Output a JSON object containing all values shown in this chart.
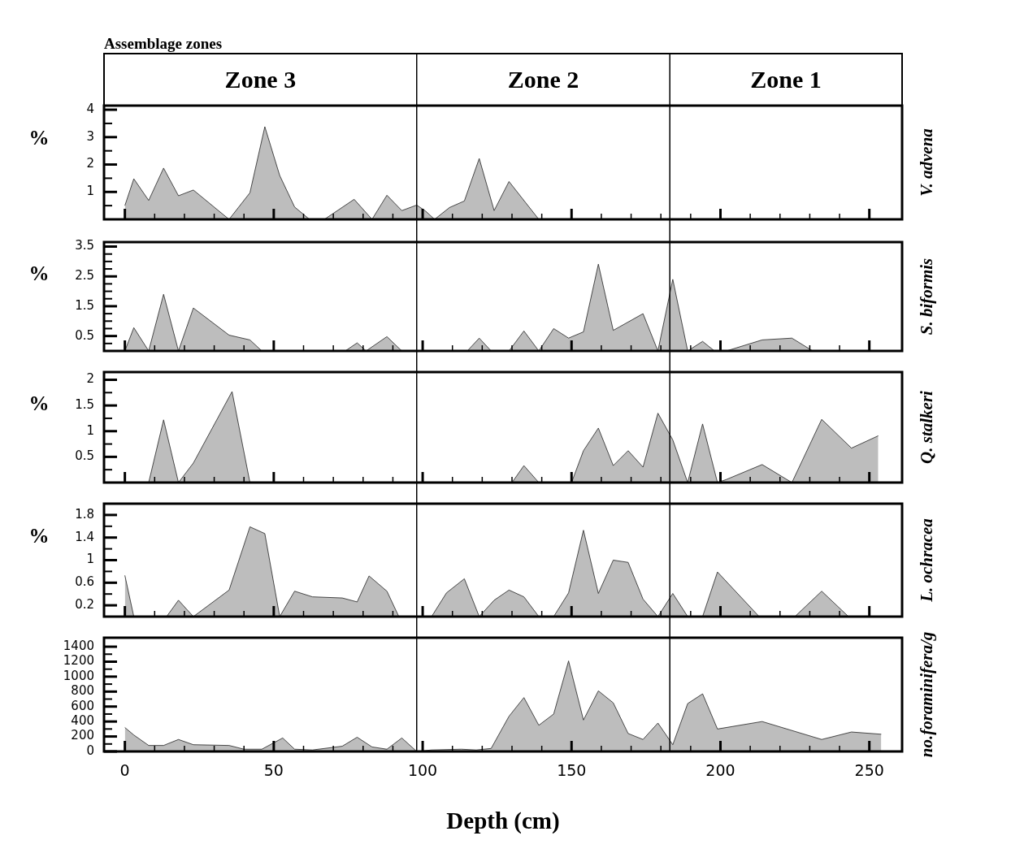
{
  "chart_data": [
    {
      "type": "area",
      "title": "Assemblage zones",
      "ylabel": "%",
      "y2label": "V. advena",
      "tick_labels": "y",
      "xlim": [
        -7,
        261
      ],
      "xticks": [
        0,
        {
          "value": 10,
          "label": null
        },
        {
          "value": 20,
          "label": null
        },
        {
          "value": 30,
          "label": null
        },
        {
          "value": 40,
          "label": null
        },
        50,
        {
          "value": 60,
          "label": null
        },
        {
          "value": 70,
          "label": null
        },
        {
          "value": 80,
          "label": null
        },
        {
          "value": 90,
          "label": null
        },
        100,
        {
          "value": 110,
          "label": null
        },
        {
          "value": 120,
          "label": null
        },
        {
          "value": 130,
          "label": null
        },
        {
          "value": 140,
          "label": null
        },
        150,
        {
          "value": 160,
          "label": null
        },
        {
          "value": 170,
          "label": null
        },
        {
          "value": 180,
          "label": null
        },
        {
          "value": 190,
          "label": null
        },
        200,
        {
          "value": 210,
          "label": null
        },
        {
          "value": 220,
          "label": null
        },
        {
          "value": 230,
          "label": null
        },
        {
          "value": 240,
          "label": null
        },
        250
      ],
      "ylim": [
        0,
        4.15
      ],
      "yticks": [
        {
          "value": 0.5,
          "label": null
        },
        1,
        {
          "value": 1.5,
          "label": null
        },
        2,
        {
          "value": 2.5,
          "label": null
        },
        3,
        {
          "value": 3.5,
          "label": null
        },
        4
      ],
      "annotations": [
        "Zone 3",
        "Zone 2",
        "Zone 1"
      ],
      "ref_lines": [
        {
          "axis": "x",
          "value": 98
        },
        {
          "axis": "x",
          "value": 183
        }
      ],
      "series": [
        {
          "color": "#bdbdbd",
          "x": [
            0,
            3,
            8,
            13,
            18,
            23,
            35,
            42,
            47,
            52,
            57,
            62,
            67,
            77,
            83,
            88,
            93,
            98,
            101,
            104,
            109,
            114,
            119,
            124,
            129,
            139
          ],
          "values": [
            0.5,
            1.48,
            0.69,
            1.87,
            0.86,
            1.07,
            0,
            0.97,
            3.38,
            1.6,
            0.45,
            0,
            0,
            0.73,
            0,
            0.88,
            0.32,
            0.52,
            0.3,
            0,
            0.43,
            0.67,
            2.22,
            0.32,
            1.38,
            0
          ]
        }
      ]
    },
    {
      "type": "area",
      "ylabel": "%",
      "y2label": "S. biformis",
      "tick_labels": "y",
      "xlim": [
        -7,
        261
      ],
      "xticks": [
        0,
        {
          "value": 10,
          "label": null
        },
        {
          "value": 20,
          "label": null
        },
        {
          "value": 30,
          "label": null
        },
        {
          "value": 40,
          "label": null
        },
        50,
        {
          "value": 60,
          "label": null
        },
        {
          "value": 70,
          "label": null
        },
        {
          "value": 80,
          "label": null
        },
        {
          "value": 90,
          "label": null
        },
        100,
        {
          "value": 110,
          "label": null
        },
        {
          "value": 120,
          "label": null
        },
        {
          "value": 130,
          "label": null
        },
        {
          "value": 140,
          "label": null
        },
        150,
        {
          "value": 160,
          "label": null
        },
        {
          "value": 170,
          "label": null
        },
        {
          "value": 180,
          "label": null
        },
        {
          "value": 190,
          "label": null
        },
        200,
        {
          "value": 210,
          "label": null
        },
        {
          "value": 220,
          "label": null
        },
        {
          "value": 230,
          "label": null
        },
        {
          "value": 240,
          "label": null
        },
        250
      ],
      "ylim": [
        0,
        3.65
      ],
      "yticks": [
        {
          "value": 0.25,
          "label": null
        },
        0.5,
        {
          "value": 0.75,
          "label": null
        },
        {
          "value": 1,
          "label": null
        },
        {
          "value": 1.25,
          "label": null
        },
        1.5,
        {
          "value": 1.75,
          "label": null
        },
        {
          "value": 2,
          "label": null
        },
        {
          "value": 2.25,
          "label": null
        },
        2.5,
        {
          "value": 2.75,
          "label": null
        },
        {
          "value": 3,
          "label": null
        },
        {
          "value": 3.25,
          "label": null
        },
        3.5
      ],
      "ref_lines": [
        {
          "axis": "x",
          "value": 98
        },
        {
          "axis": "x",
          "value": 183
        }
      ],
      "series": [
        {
          "color": "#bdbdbd",
          "x": [
            0,
            3,
            8,
            13,
            18,
            23,
            35,
            42,
            46,
            74,
            78,
            81,
            88,
            93,
            115,
            119,
            123,
            129,
            134,
            139,
            144,
            149,
            154,
            159,
            164,
            174,
            179,
            184,
            189,
            194,
            198,
            202,
            214,
            224,
            231
          ],
          "values": [
            0,
            0.78,
            0,
            1.9,
            0,
            1.44,
            0.53,
            0.37,
            0,
            0,
            0.27,
            0,
            0.48,
            0,
            0,
            0.43,
            0,
            0,
            0.67,
            0,
            0.75,
            0.43,
            0.64,
            2.91,
            0.69,
            1.25,
            0,
            2.4,
            0,
            0.32,
            0,
            0,
            0.37,
            0.43,
            0
          ]
        }
      ]
    },
    {
      "type": "area",
      "ylabel": "%",
      "y2label": "Q. stalkeri",
      "tick_labels": "y",
      "xlim": [
        -7,
        261
      ],
      "xticks": [
        0,
        {
          "value": 10,
          "label": null
        },
        {
          "value": 20,
          "label": null
        },
        {
          "value": 30,
          "label": null
        },
        {
          "value": 40,
          "label": null
        },
        50,
        {
          "value": 60,
          "label": null
        },
        {
          "value": 70,
          "label": null
        },
        {
          "value": 80,
          "label": null
        },
        {
          "value": 90,
          "label": null
        },
        100,
        {
          "value": 110,
          "label": null
        },
        {
          "value": 120,
          "label": null
        },
        {
          "value": 130,
          "label": null
        },
        {
          "value": 140,
          "label": null
        },
        150,
        {
          "value": 160,
          "label": null
        },
        {
          "value": 170,
          "label": null
        },
        {
          "value": 180,
          "label": null
        },
        {
          "value": 190,
          "label": null
        },
        200,
        {
          "value": 210,
          "label": null
        },
        {
          "value": 220,
          "label": null
        },
        {
          "value": 230,
          "label": null
        },
        {
          "value": 240,
          "label": null
        },
        250
      ],
      "ylim": [
        0,
        2.15
      ],
      "yticks": [
        {
          "value": 0.25,
          "label": null
        },
        0.5,
        {
          "value": 0.75,
          "label": null
        },
        1,
        {
          "value": 1.25,
          "label": null
        },
        1.5,
        {
          "value": 1.75,
          "label": null
        },
        2
      ],
      "ref_lines": [
        {
          "axis": "x",
          "value": 98
        },
        {
          "axis": "x",
          "value": 183
        }
      ],
      "series": [
        {
          "color": "#bdbdbd",
          "x": [
            8,
            13,
            18,
            23,
            36,
            42,
            130,
            134,
            139,
            150,
            154,
            159,
            164,
            169,
            174,
            179,
            184,
            189,
            194,
            199,
            202,
            214,
            224,
            234,
            244,
            253
          ],
          "values": [
            0,
            1.22,
            0,
            0.38,
            1.77,
            0,
            0,
            0.33,
            0,
            0,
            0.62,
            1.06,
            0.33,
            0.62,
            0.3,
            1.35,
            0.83,
            0,
            1.14,
            0,
            0.06,
            0.35,
            0,
            1.23,
            0.67,
            0.91
          ]
        }
      ]
    },
    {
      "type": "area",
      "ylabel": "%",
      "y2label": "L. ochracea",
      "tick_labels": "y",
      "xlim": [
        -7,
        261
      ],
      "xticks": [
        0,
        {
          "value": 10,
          "label": null
        },
        {
          "value": 20,
          "label": null
        },
        {
          "value": 30,
          "label": null
        },
        {
          "value": 40,
          "label": null
        },
        50,
        {
          "value": 60,
          "label": null
        },
        {
          "value": 70,
          "label": null
        },
        {
          "value": 80,
          "label": null
        },
        {
          "value": 90,
          "label": null
        },
        100,
        {
          "value": 110,
          "label": null
        },
        {
          "value": 120,
          "label": null
        },
        {
          "value": 130,
          "label": null
        },
        {
          "value": 140,
          "label": null
        },
        150,
        {
          "value": 160,
          "label": null
        },
        {
          "value": 170,
          "label": null
        },
        {
          "value": 180,
          "label": null
        },
        {
          "value": 190,
          "label": null
        },
        200,
        {
          "value": 210,
          "label": null
        },
        {
          "value": 220,
          "label": null
        },
        {
          "value": 230,
          "label": null
        },
        {
          "value": 240,
          "label": null
        },
        250
      ],
      "ylim": [
        0,
        2
      ],
      "yticks": [
        0.2,
        {
          "value": 0.4,
          "label": null
        },
        0.6,
        {
          "value": 0.8,
          "label": null
        },
        1,
        {
          "value": 1.2,
          "label": null
        },
        1.4,
        {
          "value": 1.6,
          "label": null
        },
        1.8
      ],
      "ref_lines": [
        {
          "axis": "x",
          "value": 98
        },
        {
          "axis": "x",
          "value": 183
        }
      ],
      "series": [
        {
          "color": "#bdbdbd",
          "x": [
            0,
            3,
            14,
            18,
            23,
            35,
            42,
            47,
            52,
            57,
            63,
            73,
            78,
            82,
            88,
            92,
            103,
            108,
            114,
            119,
            124,
            129,
            134,
            139,
            144,
            149,
            154,
            159,
            164,
            169,
            174,
            179,
            184,
            189,
            194,
            199,
            213,
            225,
            234,
            243
          ],
          "values": [
            0.73,
            0,
            0,
            0.29,
            0,
            0.47,
            1.59,
            1.47,
            0,
            0.45,
            0.35,
            0.33,
            0.26,
            0.72,
            0.45,
            0,
            0,
            0.42,
            0.67,
            0,
            0.29,
            0.47,
            0.35,
            0,
            0,
            0.42,
            1.53,
            0.41,
            1.0,
            0.96,
            0.31,
            0,
            0.41,
            0,
            0,
            0.79,
            0,
            0,
            0.45,
            0
          ]
        }
      ]
    },
    {
      "type": "area",
      "xlabel": "Depth (cm)",
      "y2label": "no.foraminifera/g",
      "xlim": [
        -7,
        261
      ],
      "xticks": [
        0,
        {
          "value": 10,
          "label": null
        },
        {
          "value": 20,
          "label": null
        },
        {
          "value": 30,
          "label": null
        },
        {
          "value": 40,
          "label": null
        },
        50,
        {
          "value": 60,
          "label": null
        },
        {
          "value": 70,
          "label": null
        },
        {
          "value": 80,
          "label": null
        },
        {
          "value": 90,
          "label": null
        },
        100,
        {
          "value": 110,
          "label": null
        },
        {
          "value": 120,
          "label": null
        },
        {
          "value": 130,
          "label": null
        },
        {
          "value": 140,
          "label": null
        },
        150,
        {
          "value": 160,
          "label": null
        },
        {
          "value": 170,
          "label": null
        },
        {
          "value": 180,
          "label": null
        },
        {
          "value": 190,
          "label": null
        },
        200,
        {
          "value": 210,
          "label": null
        },
        {
          "value": 220,
          "label": null
        },
        {
          "value": 230,
          "label": null
        },
        {
          "value": 240,
          "label": null
        },
        250
      ],
      "ylim": [
        0,
        1520
      ],
      "yticks": [
        0,
        {
          "value": 100,
          "label": null
        },
        200,
        {
          "value": 300,
          "label": null
        },
        400,
        {
          "value": 500,
          "label": null
        },
        600,
        {
          "value": 700,
          "label": null
        },
        800,
        {
          "value": 900,
          "label": null
        },
        1000,
        {
          "value": 1100,
          "label": null
        },
        1200,
        {
          "value": 1300,
          "label": null
        },
        1400
      ],
      "ref_lines": [
        {
          "axis": "x",
          "value": 98
        },
        {
          "axis": "x",
          "value": 183
        }
      ],
      "series": [
        {
          "color": "#bdbdbd",
          "x": [
            0,
            3,
            8,
            13,
            18,
            23,
            35,
            40,
            46,
            53,
            57,
            63,
            73,
            78,
            83,
            88,
            93,
            98,
            103,
            113,
            118,
            123,
            129,
            134,
            139,
            144,
            149,
            154,
            159,
            164,
            169,
            174,
            179,
            184,
            189,
            194,
            199,
            214,
            234,
            244,
            254
          ],
          "values": [
            320,
            220,
            80,
            80,
            160,
            90,
            80,
            30,
            30,
            180,
            30,
            20,
            70,
            190,
            60,
            30,
            180,
            0,
            20,
            30,
            20,
            40,
            470,
            720,
            350,
            500,
            1210,
            420,
            810,
            650,
            240,
            160,
            380,
            90,
            640,
            770,
            300,
            400,
            160,
            260,
            230
          ]
        }
      ]
    }
  ]
}
